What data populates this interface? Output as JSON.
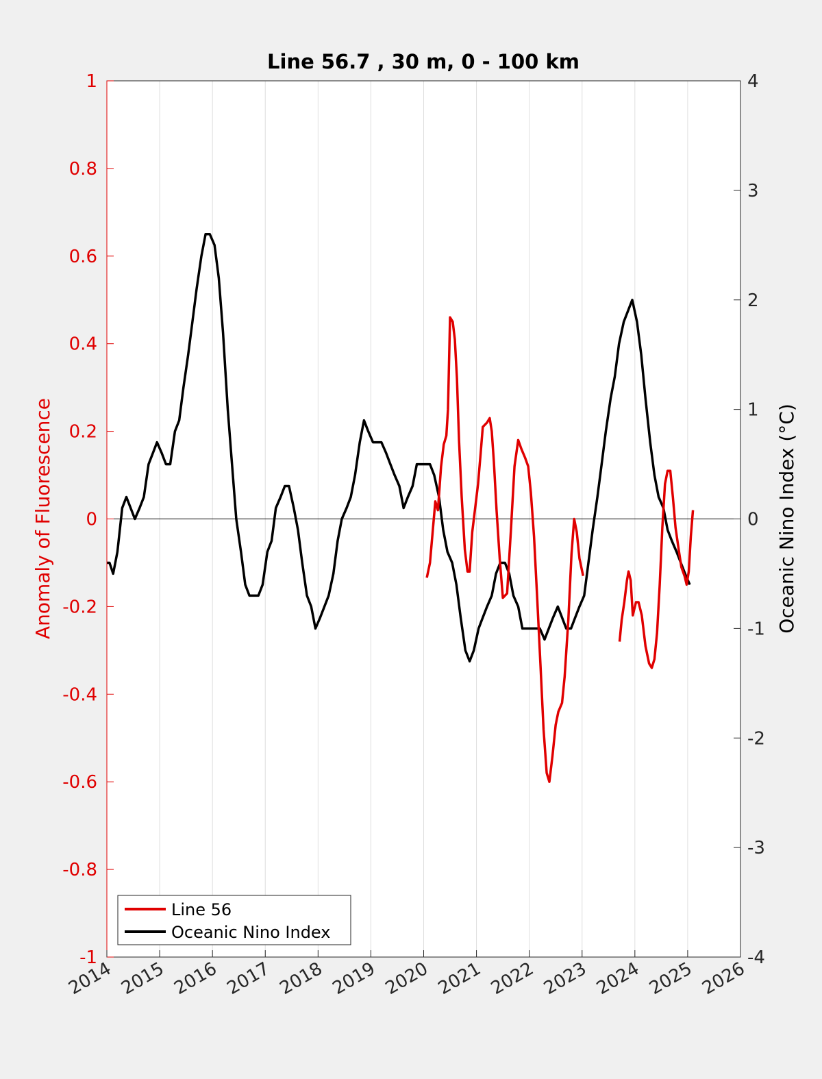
{
  "chart_data": {
    "type": "line",
    "title": "Line 56.7 , 30 m, 0 - 100 km",
    "ylabel_left": "Anomaly of Fluorescence",
    "ylabel_right": "Oceanic Nino Index (°C)",
    "xlim": [
      2014,
      2026
    ],
    "ylim_left": [
      -1,
      1
    ],
    "ylim_right": [
      -4,
      4
    ],
    "x_ticks": [
      "2014",
      "2015",
      "2016",
      "2017",
      "2018",
      "2019",
      "2020",
      "2021",
      "2022",
      "2023",
      "2024",
      "2025",
      "2026"
    ],
    "y_ticks_left": [
      "-1",
      "-0.8",
      "-0.6",
      "-0.4",
      "-0.2",
      "0",
      "0.2",
      "0.4",
      "0.6",
      "0.8",
      "1"
    ],
    "y_ticks_right": [
      "-4",
      "-3",
      "-2",
      "-1",
      "0",
      "1",
      "2",
      "3",
      "4"
    ],
    "grid": "vertical",
    "legend_position": "bottom-left",
    "colors": {
      "left_axis": "#e00000",
      "line56": "#e00000",
      "oni": "#000000"
    },
    "series": [
      {
        "name": "Line 56",
        "axis": "left",
        "segments": [
          [
            [
              2020.06,
              -0.134
            ],
            [
              2020.12,
              -0.1
            ],
            [
              2020.17,
              -0.03
            ],
            [
              2020.22,
              0.04
            ],
            [
              2020.27,
              0.02
            ],
            [
              2020.33,
              0.12
            ],
            [
              2020.38,
              0.17
            ],
            [
              2020.43,
              0.19
            ],
            [
              2020.46,
              0.25
            ],
            [
              2020.5,
              0.46
            ],
            [
              2020.55,
              0.45
            ],
            [
              2020.59,
              0.41
            ],
            [
              2020.63,
              0.32
            ],
            [
              2020.67,
              0.18
            ],
            [
              2020.72,
              0.05
            ],
            [
              2020.78,
              -0.07
            ],
            [
              2020.83,
              -0.12
            ],
            [
              2020.87,
              -0.12
            ],
            [
              2020.92,
              -0.03
            ],
            [
              2020.97,
              0.02
            ],
            [
              2021.03,
              0.08
            ],
            [
              2021.08,
              0.15
            ],
            [
              2021.12,
              0.21
            ],
            [
              2021.2,
              0.22
            ],
            [
              2021.25,
              0.23
            ],
            [
              2021.29,
              0.2
            ],
            [
              2021.33,
              0.13
            ],
            [
              2021.38,
              0.02
            ],
            [
              2021.44,
              -0.09
            ],
            [
              2021.5,
              -0.18
            ],
            [
              2021.58,
              -0.17
            ],
            [
              2021.65,
              -0.03
            ],
            [
              2021.72,
              0.12
            ],
            [
              2021.79,
              0.18
            ],
            [
              2021.85,
              0.16
            ],
            [
              2021.92,
              0.14
            ],
            [
              2021.98,
              0.12
            ],
            [
              2022.03,
              0.06
            ],
            [
              2022.09,
              -0.04
            ],
            [
              2022.15,
              -0.18
            ],
            [
              2022.21,
              -0.33
            ],
            [
              2022.27,
              -0.48
            ],
            [
              2022.33,
              -0.58
            ],
            [
              2022.38,
              -0.6
            ],
            [
              2022.44,
              -0.54
            ],
            [
              2022.5,
              -0.47
            ],
            [
              2022.55,
              -0.44
            ],
            [
              2022.62,
              -0.42
            ],
            [
              2022.67,
              -0.36
            ],
            [
              2022.74,
              -0.23
            ],
            [
              2022.8,
              -0.08
            ],
            [
              2022.85,
              0.0
            ],
            [
              2022.9,
              -0.03
            ],
            [
              2022.95,
              -0.09
            ],
            [
              2023.02,
              -0.13
            ]
          ],
          [
            [
              2023.71,
              -0.28
            ],
            [
              2023.75,
              -0.23
            ],
            [
              2023.8,
              -0.19
            ],
            [
              2023.85,
              -0.14
            ],
            [
              2023.88,
              -0.12
            ],
            [
              2023.92,
              -0.14
            ],
            [
              2023.96,
              -0.22
            ],
            [
              2024.02,
              -0.19
            ],
            [
              2024.07,
              -0.19
            ],
            [
              2024.13,
              -0.22
            ],
            [
              2024.2,
              -0.29
            ],
            [
              2024.27,
              -0.33
            ],
            [
              2024.32,
              -0.34
            ],
            [
              2024.37,
              -0.32
            ],
            [
              2024.42,
              -0.26
            ],
            [
              2024.47,
              -0.15
            ],
            [
              2024.52,
              -0.02
            ],
            [
              2024.57,
              0.08
            ],
            [
              2024.62,
              0.11
            ],
            [
              2024.67,
              0.11
            ],
            [
              2024.72,
              0.05
            ],
            [
              2024.77,
              -0.02
            ],
            [
              2024.83,
              -0.07
            ],
            [
              2024.88,
              -0.11
            ],
            [
              2024.94,
              -0.13
            ],
            [
              2024.98,
              -0.15
            ],
            [
              2025.02,
              -0.12
            ],
            [
              2025.06,
              -0.04
            ],
            [
              2025.1,
              0.02
            ]
          ]
        ]
      },
      {
        "name": "Oceanic Nino Index",
        "axis": "right",
        "points": [
          [
            2014.0,
            -0.4
          ],
          [
            2014.05,
            -0.4
          ],
          [
            2014.12,
            -0.5
          ],
          [
            2014.2,
            -0.3
          ],
          [
            2014.29,
            0.1
          ],
          [
            2014.37,
            0.2
          ],
          [
            2014.45,
            0.1
          ],
          [
            2014.53,
            0.0
          ],
          [
            2014.62,
            0.1
          ],
          [
            2014.7,
            0.2
          ],
          [
            2014.79,
            0.5
          ],
          [
            2014.87,
            0.6
          ],
          [
            2014.95,
            0.7
          ],
          [
            2015.04,
            0.6
          ],
          [
            2015.12,
            0.5
          ],
          [
            2015.2,
            0.5
          ],
          [
            2015.29,
            0.8
          ],
          [
            2015.37,
            0.9
          ],
          [
            2015.45,
            1.2
          ],
          [
            2015.54,
            1.5
          ],
          [
            2015.62,
            1.8
          ],
          [
            2015.7,
            2.1
          ],
          [
            2015.79,
            2.4
          ],
          [
            2015.87,
            2.6
          ],
          [
            2015.95,
            2.6
          ],
          [
            2016.04,
            2.5
          ],
          [
            2016.12,
            2.2
          ],
          [
            2016.2,
            1.7
          ],
          [
            2016.29,
            1.0
          ],
          [
            2016.37,
            0.5
          ],
          [
            2016.45,
            0.0
          ],
          [
            2016.54,
            -0.3
          ],
          [
            2016.62,
            -0.6
          ],
          [
            2016.7,
            -0.7
          ],
          [
            2016.79,
            -0.7
          ],
          [
            2016.87,
            -0.7
          ],
          [
            2016.95,
            -0.6
          ],
          [
            2017.04,
            -0.3
          ],
          [
            2017.12,
            -0.2
          ],
          [
            2017.2,
            0.1
          ],
          [
            2017.29,
            0.2
          ],
          [
            2017.37,
            0.3
          ],
          [
            2017.45,
            0.3
          ],
          [
            2017.54,
            0.1
          ],
          [
            2017.62,
            -0.1
          ],
          [
            2017.7,
            -0.4
          ],
          [
            2017.79,
            -0.7
          ],
          [
            2017.87,
            -0.8
          ],
          [
            2017.95,
            -1.0
          ],
          [
            2018.04,
            -0.9
          ],
          [
            2018.12,
            -0.8
          ],
          [
            2018.2,
            -0.7
          ],
          [
            2018.29,
            -0.5
          ],
          [
            2018.37,
            -0.2
          ],
          [
            2018.45,
            0.0
          ],
          [
            2018.54,
            0.1
          ],
          [
            2018.62,
            0.2
          ],
          [
            2018.7,
            0.4
          ],
          [
            2018.79,
            0.7
          ],
          [
            2018.87,
            0.9
          ],
          [
            2018.95,
            0.8
          ],
          [
            2019.04,
            0.7
          ],
          [
            2019.12,
            0.7
          ],
          [
            2019.2,
            0.7
          ],
          [
            2019.29,
            0.6
          ],
          [
            2019.37,
            0.5
          ],
          [
            2019.45,
            0.4
          ],
          [
            2019.54,
            0.3
          ],
          [
            2019.62,
            0.1
          ],
          [
            2019.7,
            0.2
          ],
          [
            2019.79,
            0.3
          ],
          [
            2019.87,
            0.5
          ],
          [
            2019.95,
            0.5
          ],
          [
            2020.04,
            0.5
          ],
          [
            2020.12,
            0.5
          ],
          [
            2020.2,
            0.4
          ],
          [
            2020.29,
            0.2
          ],
          [
            2020.37,
            -0.1
          ],
          [
            2020.45,
            -0.3
          ],
          [
            2020.54,
            -0.4
          ],
          [
            2020.62,
            -0.6
          ],
          [
            2020.7,
            -0.9
          ],
          [
            2020.79,
            -1.2
          ],
          [
            2020.87,
            -1.3
          ],
          [
            2020.95,
            -1.2
          ],
          [
            2021.04,
            -1.0
          ],
          [
            2021.12,
            -0.9
          ],
          [
            2021.2,
            -0.8
          ],
          [
            2021.29,
            -0.7
          ],
          [
            2021.37,
            -0.5
          ],
          [
            2021.45,
            -0.4
          ],
          [
            2021.54,
            -0.4
          ],
          [
            2021.62,
            -0.5
          ],
          [
            2021.7,
            -0.7
          ],
          [
            2021.79,
            -0.8
          ],
          [
            2021.87,
            -1.0
          ],
          [
            2021.95,
            -1.0
          ],
          [
            2022.04,
            -1.0
          ],
          [
            2022.12,
            -1.0
          ],
          [
            2022.2,
            -1.0
          ],
          [
            2022.29,
            -1.1
          ],
          [
            2022.37,
            -1.0
          ],
          [
            2022.45,
            -0.9
          ],
          [
            2022.54,
            -0.8
          ],
          [
            2022.62,
            -0.9
          ],
          [
            2022.7,
            -1.0
          ],
          [
            2022.79,
            -1.0
          ],
          [
            2022.87,
            -0.9
          ],
          [
            2022.95,
            -0.8
          ],
          [
            2023.04,
            -0.7
          ],
          [
            2023.12,
            -0.4
          ],
          [
            2023.2,
            -0.1
          ],
          [
            2023.29,
            0.2
          ],
          [
            2023.37,
            0.5
          ],
          [
            2023.45,
            0.8
          ],
          [
            2023.54,
            1.1
          ],
          [
            2023.62,
            1.3
          ],
          [
            2023.7,
            1.6
          ],
          [
            2023.79,
            1.8
          ],
          [
            2023.87,
            1.9
          ],
          [
            2023.95,
            2.0
          ],
          [
            2024.04,
            1.8
          ],
          [
            2024.12,
            1.5
          ],
          [
            2024.2,
            1.1
          ],
          [
            2024.29,
            0.7
          ],
          [
            2024.37,
            0.4
          ],
          [
            2024.45,
            0.2
          ],
          [
            2024.54,
            0.1
          ],
          [
            2024.62,
            -0.1
          ],
          [
            2024.7,
            -0.2
          ],
          [
            2024.79,
            -0.3
          ],
          [
            2024.87,
            -0.4
          ],
          [
            2024.95,
            -0.5
          ],
          [
            2025.04,
            -0.6
          ]
        ]
      }
    ]
  }
}
